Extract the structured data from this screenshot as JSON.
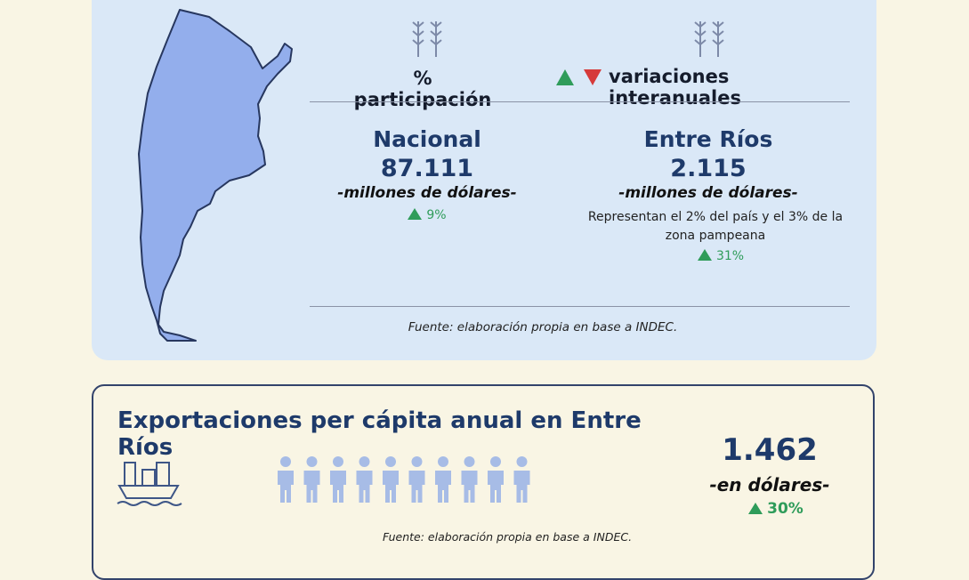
{
  "summary": {
    "headers": {
      "share": "% participación",
      "variation": "variaciones interanuales"
    },
    "national": {
      "title": "Nacional",
      "amount": "87.111",
      "unit": "-millones de dólares-",
      "change": "9%"
    },
    "province": {
      "title": "Entre Ríos",
      "amount": "2.115",
      "unit": "-millones de dólares-",
      "note": "Representan el 2% del país y el 3% de la zona pampeana",
      "change": "31%"
    },
    "source": "Fuente: elaboración propia en base a INDEC."
  },
  "per_capita": {
    "title": "Exportaciones per cápita anual en Entre Ríos",
    "amount": "1.462",
    "unit": "-en dólares-",
    "change": "30%",
    "source": "Fuente: elaboración propia en base a INDEC."
  }
}
